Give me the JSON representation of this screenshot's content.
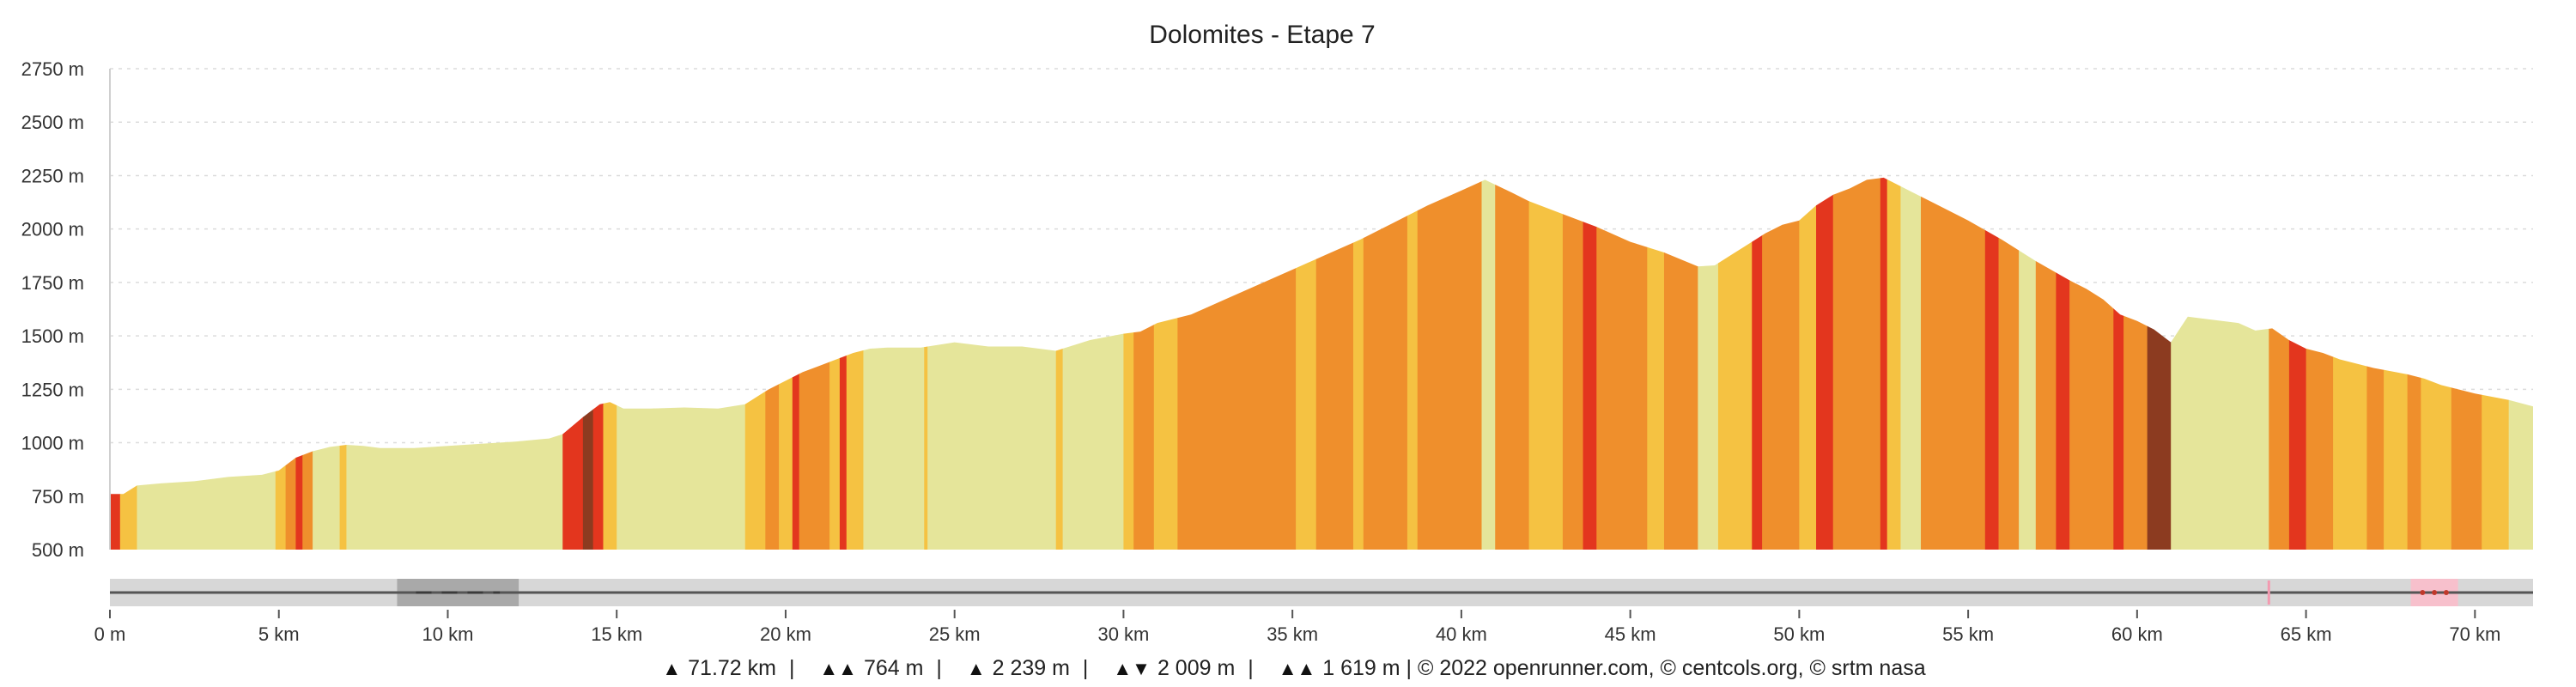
{
  "chart_data": {
    "type": "area",
    "title": "Dolomites - Etape 7",
    "xlabel": "",
    "ylabel": "",
    "xlim": [
      0,
      71.72
    ],
    "ylim": [
      500,
      2750
    ],
    "y_ticks": [
      "500 m",
      "750 m",
      "1000 m",
      "1250 m",
      "1500 m",
      "1750 m",
      "2000 m",
      "2250 m",
      "2500 m",
      "2750 m"
    ],
    "y_tick_values": [
      500,
      750,
      1000,
      1250,
      1500,
      1750,
      2000,
      2250,
      2500,
      2750
    ],
    "x_ticks": [
      "0 m",
      "5 km",
      "10 km",
      "15 km",
      "20 km",
      "25 km",
      "30 km",
      "35 km",
      "40 km",
      "45 km",
      "50 km",
      "55 km",
      "60 km",
      "65 km",
      "70 km"
    ],
    "x_tick_values": [
      0,
      5,
      10,
      15,
      20,
      25,
      30,
      35,
      40,
      45,
      50,
      55,
      60,
      65,
      70
    ],
    "grid": true,
    "series": [
      {
        "x": [
          0,
          0.4,
          0.8,
          1.5,
          2.5,
          3.5,
          4.5,
          5.0,
          5.5,
          6.0,
          6.5,
          7.0,
          7.5,
          8.0,
          9.0,
          10.0,
          11.0,
          12.0,
          13.0,
          13.4,
          14.0,
          14.5,
          14.8,
          15.2,
          16.0,
          17.0,
          18.0,
          18.8,
          19.5,
          20.0,
          20.5,
          21.0,
          21.5,
          22.0,
          22.5,
          23.0,
          24.0,
          25.0,
          26.0,
          27.0,
          28.0,
          29.0,
          30.0,
          30.5,
          31.0,
          32.0,
          33.0,
          34.0,
          35.0,
          36.0,
          37.0,
          38.0,
          39.0,
          40.0,
          40.7,
          41.5,
          42.0,
          43.0,
          44.0,
          45.0,
          46.0,
          47.0,
          47.5,
          48.0,
          48.5,
          49.0,
          49.5,
          50.0,
          50.5,
          51.0,
          51.5,
          52.0,
          52.5,
          53.0,
          53.5,
          54.0,
          55.0,
          56.0,
          57.0,
          58.0,
          58.5,
          59.0,
          59.5,
          60.0,
          60.5,
          61.0,
          61.5,
          62.0,
          63.0,
          63.5,
          64.0,
          64.5,
          65.0,
          65.5,
          66.0,
          67.0,
          68.0,
          68.5,
          69.0,
          70.0,
          71.0,
          71.72
        ],
        "y": [
          760,
          760,
          800,
          810,
          820,
          840,
          850,
          870,
          930,
          960,
          980,
          990,
          985,
          975,
          975,
          985,
          995,
          1005,
          1020,
          1040,
          1120,
          1180,
          1190,
          1160,
          1160,
          1165,
          1160,
          1180,
          1250,
          1290,
          1330,
          1360,
          1390,
          1420,
          1440,
          1445,
          1445,
          1470,
          1450,
          1450,
          1430,
          1480,
          1510,
          1520,
          1560,
          1600,
          1670,
          1740,
          1810,
          1880,
          1950,
          2030,
          2110,
          2180,
          2230,
          2170,
          2130,
          2070,
          2010,
          1940,
          1890,
          1825,
          1830,
          1880,
          1930,
          1980,
          2020,
          2040,
          2110,
          2160,
          2190,
          2230,
          2240,
          2200,
          2160,
          2120,
          2040,
          1950,
          1850,
          1760,
          1720,
          1670,
          1600,
          1570,
          1530,
          1470,
          1590,
          1580,
          1560,
          1525,
          1535,
          1480,
          1440,
          1420,
          1390,
          1350,
          1320,
          1300,
          1270,
          1230,
          1200,
          1170
        ]
      }
    ],
    "slope_colors": {
      "gentle": "#e5e59a",
      "moderate": "#f5c242",
      "steep": "#ef8f2c",
      "very_steep": "#e3361e",
      "extreme": "#8c3b20"
    },
    "slope_segments": [
      [
        0,
        0.3,
        "very_steep"
      ],
      [
        0.3,
        0.8,
        "moderate"
      ],
      [
        0.8,
        4.9,
        "gentle"
      ],
      [
        4.9,
        5.2,
        "moderate"
      ],
      [
        5.2,
        5.5,
        "steep"
      ],
      [
        5.5,
        5.7,
        "very_steep"
      ],
      [
        5.7,
        6.0,
        "steep"
      ],
      [
        6.0,
        6.8,
        "gentle"
      ],
      [
        6.8,
        7.0,
        "moderate"
      ],
      [
        7.0,
        13.4,
        "gentle"
      ],
      [
        13.4,
        14.0,
        "very_steep"
      ],
      [
        14.0,
        14.3,
        "extreme"
      ],
      [
        14.3,
        14.6,
        "very_steep"
      ],
      [
        14.6,
        15.0,
        "moderate"
      ],
      [
        15.0,
        18.8,
        "gentle"
      ],
      [
        18.8,
        19.4,
        "moderate"
      ],
      [
        19.4,
        19.8,
        "steep"
      ],
      [
        19.8,
        20.2,
        "moderate"
      ],
      [
        20.2,
        20.4,
        "very_steep"
      ],
      [
        20.4,
        21.3,
        "steep"
      ],
      [
        21.3,
        21.6,
        "moderate"
      ],
      [
        21.6,
        21.8,
        "very_steep"
      ],
      [
        21.8,
        22.3,
        "moderate"
      ],
      [
        22.3,
        24.1,
        "gentle"
      ],
      [
        24.1,
        24.2,
        "moderate"
      ],
      [
        24.2,
        28.0,
        "gentle"
      ],
      [
        28.0,
        28.2,
        "moderate"
      ],
      [
        28.2,
        30.0,
        "gentle"
      ],
      [
        30.0,
        30.3,
        "moderate"
      ],
      [
        30.3,
        30.9,
        "steep"
      ],
      [
        30.9,
        31.6,
        "moderate"
      ],
      [
        31.6,
        35.1,
        "steep"
      ],
      [
        35.1,
        35.7,
        "moderate"
      ],
      [
        35.7,
        36.8,
        "steep"
      ],
      [
        36.8,
        37.1,
        "moderate"
      ],
      [
        37.1,
        38.4,
        "steep"
      ],
      [
        38.4,
        38.7,
        "moderate"
      ],
      [
        38.7,
        40.6,
        "steep"
      ],
      [
        40.6,
        41.0,
        "gentle"
      ],
      [
        41.0,
        42.0,
        "steep"
      ],
      [
        42.0,
        43.0,
        "moderate"
      ],
      [
        43.0,
        43.6,
        "steep"
      ],
      [
        43.6,
        44.0,
        "very_steep"
      ],
      [
        44.0,
        45.5,
        "steep"
      ],
      [
        45.5,
        46.0,
        "moderate"
      ],
      [
        46.0,
        47.0,
        "steep"
      ],
      [
        47.0,
        47.6,
        "gentle"
      ],
      [
        47.6,
        48.6,
        "moderate"
      ],
      [
        48.6,
        48.9,
        "very_steep"
      ],
      [
        48.9,
        50.0,
        "steep"
      ],
      [
        50.0,
        50.5,
        "moderate"
      ],
      [
        50.5,
        51.0,
        "very_steep"
      ],
      [
        51.0,
        52.4,
        "steep"
      ],
      [
        52.4,
        52.6,
        "very_steep"
      ],
      [
        52.6,
        53.0,
        "moderate"
      ],
      [
        53.0,
        53.6,
        "gentle"
      ],
      [
        53.6,
        55.5,
        "steep"
      ],
      [
        55.5,
        55.9,
        "very_steep"
      ],
      [
        55.9,
        56.5,
        "steep"
      ],
      [
        56.5,
        57.0,
        "gentle"
      ],
      [
        57.0,
        57.6,
        "steep"
      ],
      [
        57.6,
        58.0,
        "very_steep"
      ],
      [
        58.0,
        59.3,
        "steep"
      ],
      [
        59.3,
        59.6,
        "very_steep"
      ],
      [
        59.6,
        60.3,
        "steep"
      ],
      [
        60.3,
        61.0,
        "extreme"
      ],
      [
        61.0,
        63.9,
        "gentle"
      ],
      [
        63.9,
        64.5,
        "steep"
      ],
      [
        64.5,
        65.0,
        "very_steep"
      ],
      [
        65.0,
        65.8,
        "steep"
      ],
      [
        65.8,
        66.8,
        "moderate"
      ],
      [
        66.8,
        67.3,
        "steep"
      ],
      [
        67.3,
        68.0,
        "moderate"
      ],
      [
        68.0,
        68.4,
        "steep"
      ],
      [
        68.4,
        69.3,
        "moderate"
      ],
      [
        69.3,
        70.2,
        "steep"
      ],
      [
        70.2,
        71.0,
        "moderate"
      ],
      [
        71.0,
        71.72,
        "gentle"
      ]
    ]
  },
  "minimap": {
    "track_color": "#d7d7d7",
    "line_color": "#555555",
    "selection_range_km": [
      8.5,
      12.1
    ],
    "selection_color": "#a9a9a9",
    "markers_km": [
      63.9
    ],
    "marker_color": "#f39ab0",
    "pink_range_km": [
      68.1,
      69.5
    ],
    "pink_color": "#f7c0cc"
  },
  "footer": {
    "distance_icon": "distance-icon",
    "distance": "71.72 km",
    "sep": "|",
    "climb_icon": "climb-icon",
    "climb": "764 m",
    "max_icon": "max-altitude-icon",
    "max_alt": "2 239 m",
    "descent_icon": "descent-icon",
    "descent": "2 009 m",
    "min_icon": "min-altitude-icon",
    "credits": "1 619 m | © 2022 openrunner.com, © centcols.org, © srtm nasa"
  }
}
